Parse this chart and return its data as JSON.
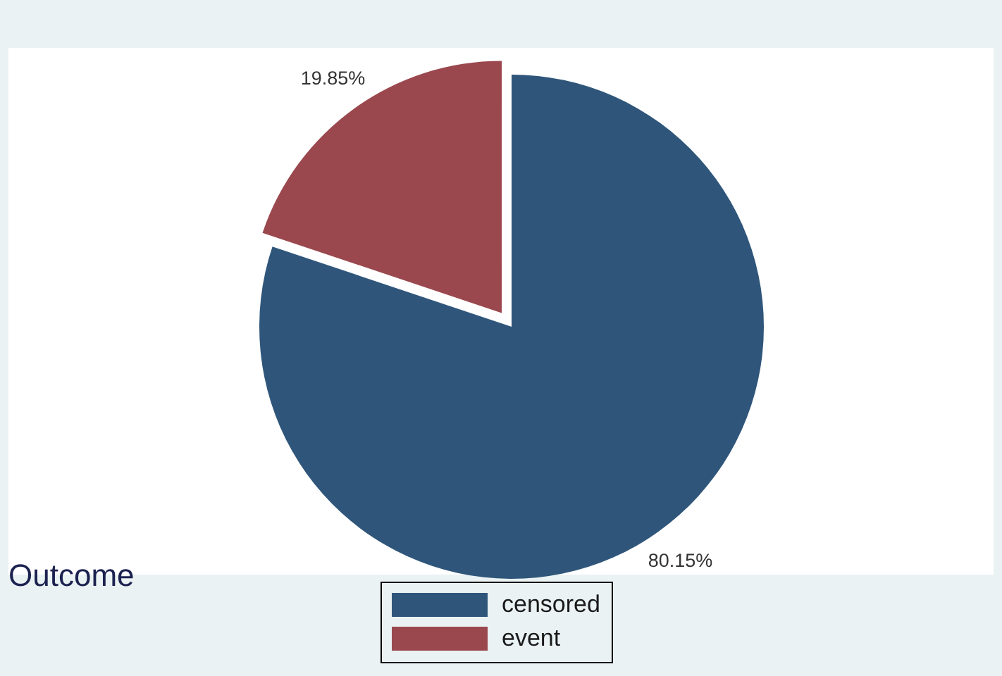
{
  "chart_data": {
    "type": "pie",
    "title": "Outcome",
    "categories": [
      "censored",
      "event"
    ],
    "values": [
      80.15,
      19.85
    ],
    "colors": [
      "#2f567a",
      "#9a484e"
    ],
    "value_labels": [
      "80.15%",
      "19.85%"
    ],
    "legend": "bottom"
  }
}
